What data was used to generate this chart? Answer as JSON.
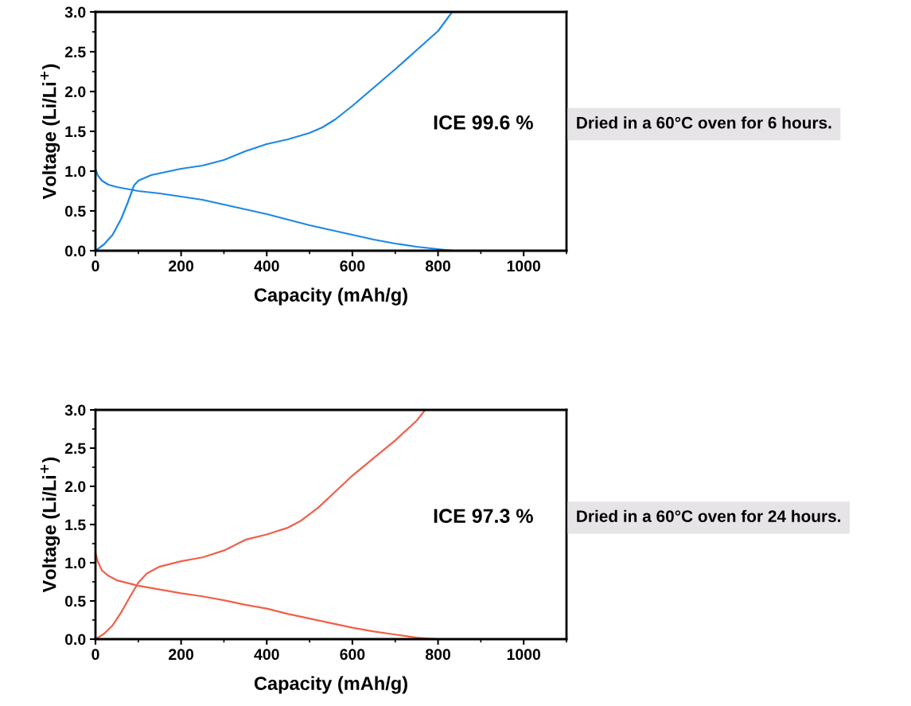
{
  "chart_data": [
    {
      "type": "line",
      "xlabel": "Capacity (mAh/g)",
      "ylabel": "Voltage (Li/Li$^{+}$)",
      "xlim": [
        0,
        1100
      ],
      "xticks": [
        0,
        200,
        400,
        600,
        800,
        1000
      ],
      "ylim": [
        0,
        3
      ],
      "yticks": [
        {
          "value": 0,
          "label": "0.0"
        },
        {
          "value": 0.5,
          "label": "0.5"
        },
        {
          "value": 1,
          "label": "1.0"
        },
        {
          "value": 1.5,
          "label": "1.5"
        },
        {
          "value": 2,
          "label": "2.0"
        },
        {
          "value": 2.5,
          "label": "2.5"
        },
        {
          "value": 3,
          "label": "3.0"
        }
      ],
      "grid": false,
      "legend": false,
      "marker": "none",
      "line_style": "solid",
      "annotations": [
        "ICE 99.6 %",
        "Dried in a 60°C oven for 6 hours."
      ],
      "series": [
        {
          "color": "#1e88e5",
          "x": [
            0,
            5,
            15,
            30,
            50,
            100,
            150,
            200,
            250,
            300,
            350,
            400,
            450,
            500,
            550,
            600,
            650,
            700,
            750,
            800,
            835
          ],
          "values": [
            1.03,
            0.95,
            0.88,
            0.83,
            0.8,
            0.75,
            0.72,
            0.68,
            0.64,
            0.58,
            0.52,
            0.46,
            0.39,
            0.32,
            0.26,
            0.2,
            0.14,
            0.09,
            0.05,
            0.02,
            0
          ]
        },
        {
          "color": "#1e88e5",
          "x": [
            0,
            20,
            40,
            60,
            75,
            90,
            100,
            130,
            200,
            250,
            300,
            350,
            400,
            450,
            500,
            530,
            560,
            600,
            650,
            700,
            750,
            800,
            833
          ],
          "values": [
            0,
            0.08,
            0.2,
            0.4,
            0.6,
            0.82,
            0.88,
            0.95,
            1.03,
            1.07,
            1.14,
            1.25,
            1.34,
            1.4,
            1.48,
            1.55,
            1.65,
            1.82,
            2.05,
            2.28,
            2.52,
            2.76,
            3.0
          ]
        }
      ]
    },
    {
      "type": "line",
      "xlabel": "Capacity (mAh/g)",
      "ylabel": "Voltage (Li/Li$^{+}$)",
      "xlim": [
        0,
        1100
      ],
      "xticks": [
        0,
        200,
        400,
        600,
        800,
        1000
      ],
      "ylim": [
        0,
        3
      ],
      "yticks": [
        {
          "value": 0,
          "label": "0.0"
        },
        {
          "value": 0.5,
          "label": "0.5"
        },
        {
          "value": 1,
          "label": "1.0"
        },
        {
          "value": 1.5,
          "label": "1.5"
        },
        {
          "value": 2,
          "label": "2.0"
        },
        {
          "value": 2.5,
          "label": "2.5"
        },
        {
          "value": 3,
          "label": "3.0"
        }
      ],
      "grid": false,
      "legend": false,
      "marker": "none",
      "line_style": "solid",
      "annotations": [
        "ICE 97.3 %",
        "Dried in a 60°C oven for 24 hours."
      ],
      "series": [
        {
          "color": "#f0604a",
          "x": [
            0,
            5,
            15,
            30,
            50,
            100,
            150,
            200,
            250,
            300,
            350,
            400,
            450,
            500,
            550,
            600,
            650,
            700,
            750,
            795
          ],
          "values": [
            1.13,
            1.02,
            0.9,
            0.83,
            0.77,
            0.7,
            0.65,
            0.6,
            0.56,
            0.51,
            0.45,
            0.4,
            0.33,
            0.27,
            0.21,
            0.15,
            0.1,
            0.06,
            0.02,
            0
          ]
        },
        {
          "color": "#f0604a",
          "x": [
            0,
            20,
            40,
            60,
            80,
            100,
            120,
            150,
            200,
            250,
            300,
            350,
            400,
            450,
            480,
            520,
            560,
            600,
            650,
            700,
            750,
            770
          ],
          "values": [
            0,
            0.07,
            0.18,
            0.35,
            0.55,
            0.74,
            0.86,
            0.95,
            1.02,
            1.07,
            1.16,
            1.3,
            1.37,
            1.46,
            1.55,
            1.72,
            1.93,
            2.14,
            2.37,
            2.6,
            2.86,
            3.0
          ]
        }
      ]
    }
  ]
}
